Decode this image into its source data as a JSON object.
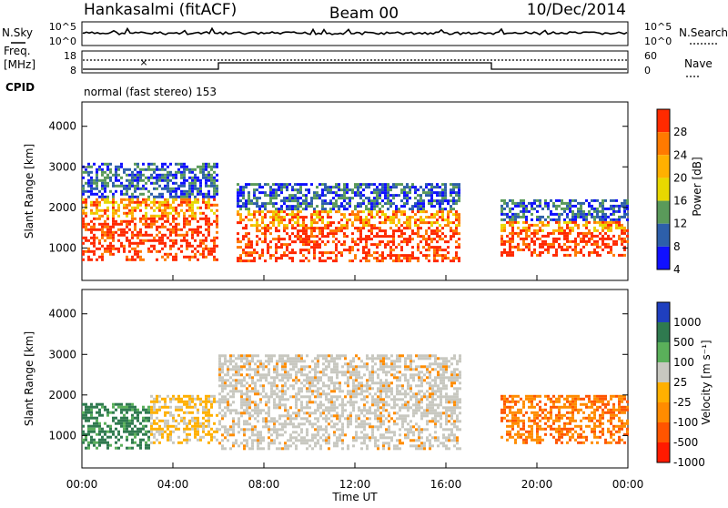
{
  "header": {
    "station": "Hankasalmi (fitACF)",
    "beam": "Beam 00",
    "date": "10/Dec/2014"
  },
  "top_panels": {
    "nsky_label": "N.Sky",
    "nsearch_label": "N.Search",
    "nsky_ticks": [
      "10^5",
      "10^0"
    ],
    "freq_label_1": "Freq.",
    "freq_label_2": "[MHz]",
    "freq_ticks": [
      "18",
      "8"
    ],
    "nave_label": "Nave",
    "nave_ticks": [
      "60",
      "0"
    ],
    "cpid_label": "CPID",
    "cpid_text": "normal (fast stereo) 153"
  },
  "chart_data": [
    {
      "type": "heatmap",
      "name": "power-panel",
      "ylabel": "Slant Range [km]",
      "xlabel": "",
      "ylim": [
        200,
        4600
      ],
      "xlim": [
        0,
        24
      ],
      "y_ticks": [
        1000,
        2000,
        3000,
        4000
      ],
      "colorbar_label": "Power [dB]",
      "colorbar_ticks": [
        "28",
        "24",
        "20",
        "16",
        "12",
        "8",
        "4"
      ],
      "colorbar_colors": [
        "#ff2a00",
        "#ff7a00",
        "#ffb000",
        "#e8d800",
        "#5a9a5a",
        "#2d5faa",
        "#1010ff"
      ],
      "regions": [
        {
          "x0": 0.0,
          "x1": 6.0,
          "y0": 700,
          "y1": 3100,
          "level": "mixed"
        },
        {
          "x0": 6.8,
          "x1": 16.6,
          "y0": 700,
          "y1": 2600,
          "level": "mixed"
        },
        {
          "x0": 18.4,
          "x1": 24.0,
          "y0": 800,
          "y1": 2200,
          "level": "mixed"
        }
      ]
    },
    {
      "type": "heatmap",
      "name": "velocity-panel",
      "ylabel": "Slant Range [km]",
      "xlabel": "Time UT",
      "ylim": [
        200,
        4600
      ],
      "xlim": [
        0,
        24
      ],
      "y_ticks": [
        1000,
        2000,
        3000,
        4000
      ],
      "x_ticks": [
        "00:00",
        "04:00",
        "08:00",
        "12:00",
        "16:00",
        "20:00",
        "00:00"
      ],
      "colorbar_label": "Velocity [m s⁻¹]",
      "colorbar_ticks": [
        "1000",
        "500",
        "100",
        "25",
        "-25",
        "-100",
        "-500",
        "-1000"
      ],
      "colorbar_colors": [
        "#1f3fbf",
        "#2f7a4f",
        "#5ab05a",
        "#c8c8c0",
        "#ffb000",
        "#ff8c00",
        "#ff5500",
        "#ff1a00"
      ],
      "regions": [
        {
          "x0": 0.0,
          "x1": 3.0,
          "y0": 700,
          "y1": 1800,
          "level": "positive"
        },
        {
          "x0": 3.0,
          "x1": 6.0,
          "y0": 800,
          "y1": 2000,
          "level": "negative-small"
        },
        {
          "x0": 6.0,
          "x1": 16.6,
          "y0": 700,
          "y1": 3000,
          "level": "near-zero"
        },
        {
          "x0": 18.4,
          "x1": 24.0,
          "y0": 800,
          "y1": 2000,
          "level": "negative"
        }
      ]
    }
  ]
}
